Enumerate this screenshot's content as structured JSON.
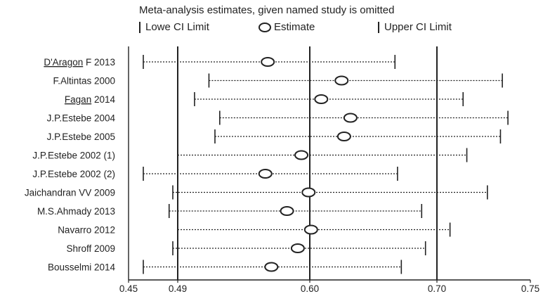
{
  "chart_data": {
    "type": "forest",
    "title": "Meta-analysis estimates, given named study is omitted",
    "legend": {
      "lower": "Lowe CI Limit",
      "estimate": "Estimate",
      "upper": "Upper CI Limit"
    },
    "x_ticks": [
      "0.45",
      "0.49",
      "0.60",
      "0.70",
      "0.75"
    ],
    "reference_lines": [
      "0.49",
      "0.60",
      "0.70"
    ],
    "studies": [
      {
        "name": "D'Aragon F 2013",
        "lower": 0.462,
        "estimate": 0.565,
        "upper": 0.667
      },
      {
        "name": "F.Altintas 2000",
        "lower": 0.516,
        "estimate": 0.625,
        "upper": 0.735
      },
      {
        "name": "Fagan 2014",
        "lower": 0.504,
        "estimate": 0.609,
        "upper": 0.714
      },
      {
        "name": "J.P.Estebe 2004",
        "lower": 0.525,
        "estimate": 0.632,
        "upper": 0.738
      },
      {
        "name": "J.P.Estebe 2005",
        "lower": 0.521,
        "estimate": 0.627,
        "upper": 0.734
      },
      {
        "name": "J.P.Estebe 2002 (1)",
        "lower": 0.49,
        "estimate": 0.593,
        "upper": 0.716
      },
      {
        "name": "J.P.Estebe 2002 (2)",
        "lower": 0.462,
        "estimate": 0.563,
        "upper": 0.669
      },
      {
        "name": "Jaichandran VV 2009",
        "lower": 0.486,
        "estimate": 0.599,
        "upper": 0.727
      },
      {
        "name": "M.S.Ahmady 2013",
        "lower": 0.483,
        "estimate": 0.581,
        "upper": 0.688
      },
      {
        "name": "Navarro 2012",
        "lower": 0.49,
        "estimate": 0.601,
        "upper": 0.707
      },
      {
        "name": "Shroff 2009",
        "lower": 0.486,
        "estimate": 0.59,
        "upper": 0.691
      },
      {
        "name": "Bousselmi 2014",
        "lower": 0.462,
        "estimate": 0.568,
        "upper": 0.672
      }
    ]
  }
}
